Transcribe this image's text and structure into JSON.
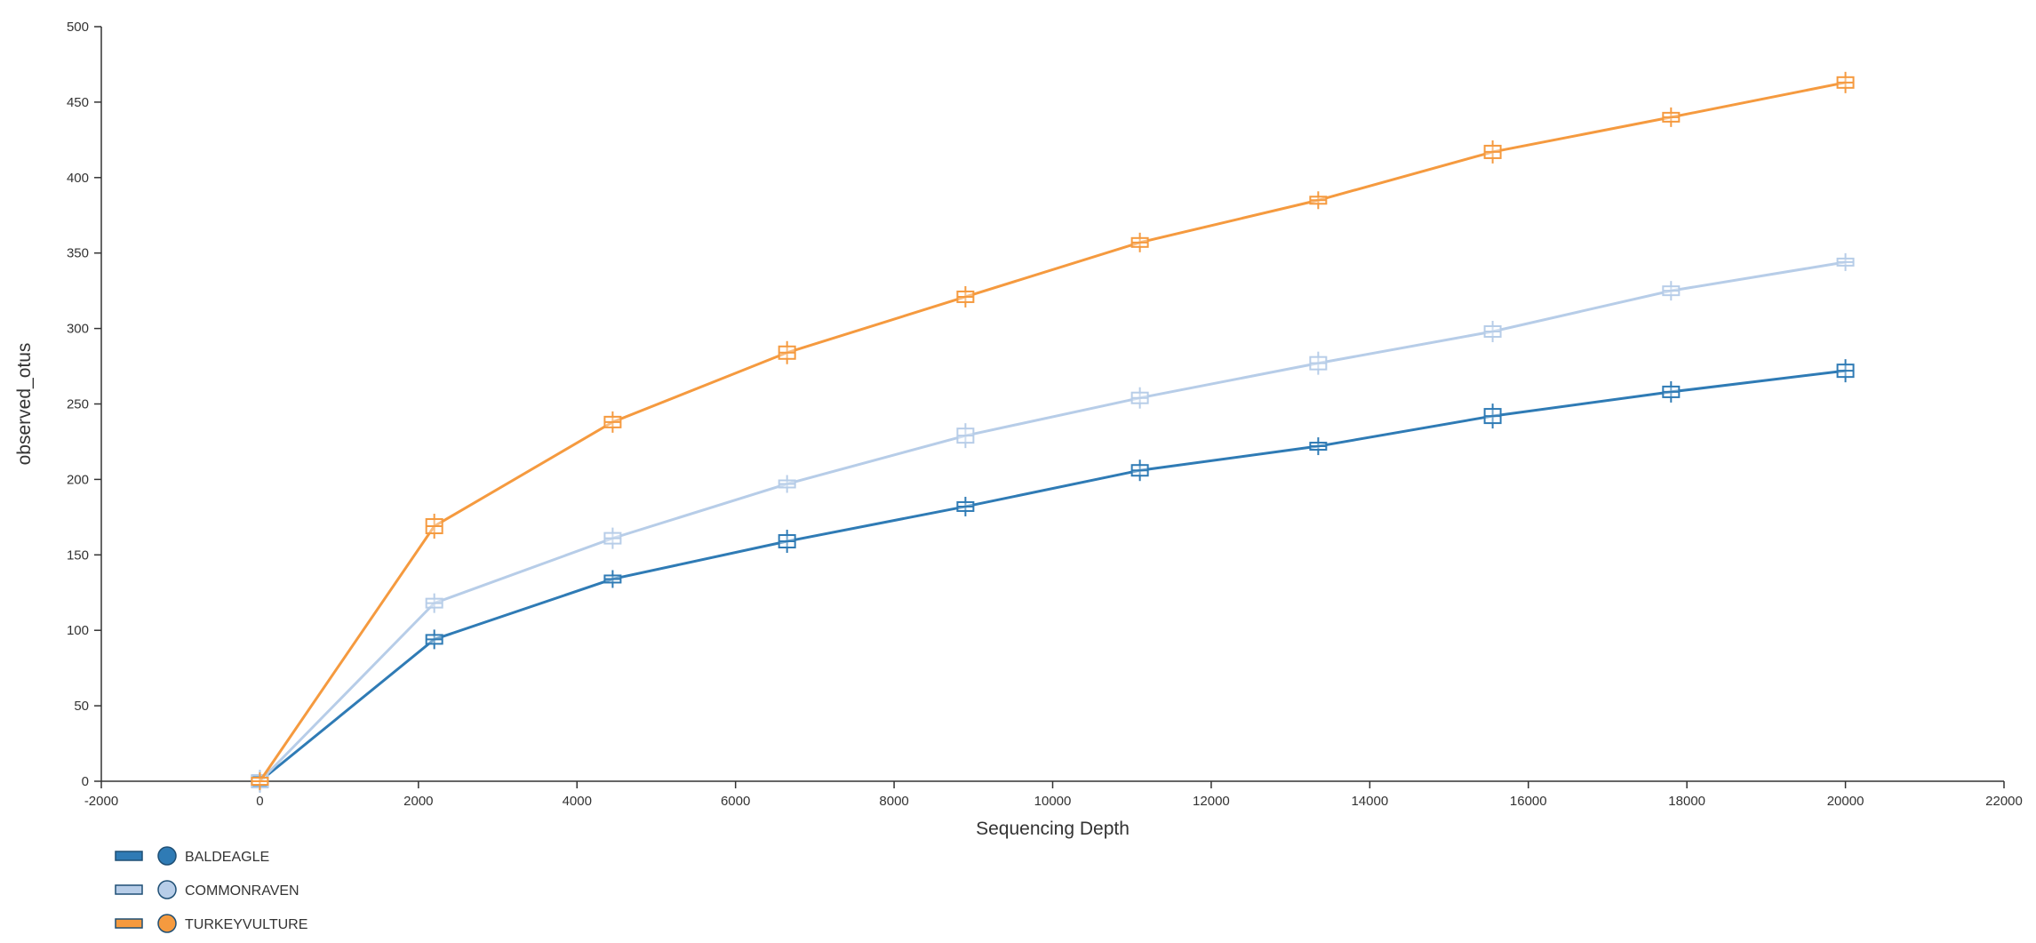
{
  "chart_data": {
    "type": "line",
    "xlabel": "Sequencing Depth",
    "ylabel": "observed_otus",
    "xlim": [
      -2000,
      22000
    ],
    "ylim": [
      0,
      500
    ],
    "x_ticks": [
      -2000,
      0,
      2000,
      4000,
      6000,
      8000,
      10000,
      12000,
      14000,
      16000,
      18000,
      20000,
      22000
    ],
    "y_ticks": [
      0,
      50,
      100,
      150,
      200,
      250,
      300,
      350,
      400,
      450,
      500
    ],
    "x": [
      0,
      2200,
      4450,
      6650,
      8900,
      11100,
      13350,
      15550,
      17800,
      20000
    ],
    "series": [
      {
        "name": "BALDEAGLE",
        "color": "#2f7bb5",
        "values": [
          0,
          94,
          134,
          159,
          182,
          206,
          222,
          242,
          258,
          272
        ]
      },
      {
        "name": "COMMONRAVEN",
        "color": "#b7cde8",
        "values": [
          0,
          118,
          161,
          197,
          229,
          254,
          277,
          298,
          325,
          344
        ]
      },
      {
        "name": "TURKEYVULTURE",
        "color": "#f59a3f",
        "values": [
          0,
          169,
          238,
          284,
          321,
          357,
          385,
          417,
          440,
          463
        ]
      }
    ],
    "grid": false,
    "legend_position": "bottom-left"
  }
}
